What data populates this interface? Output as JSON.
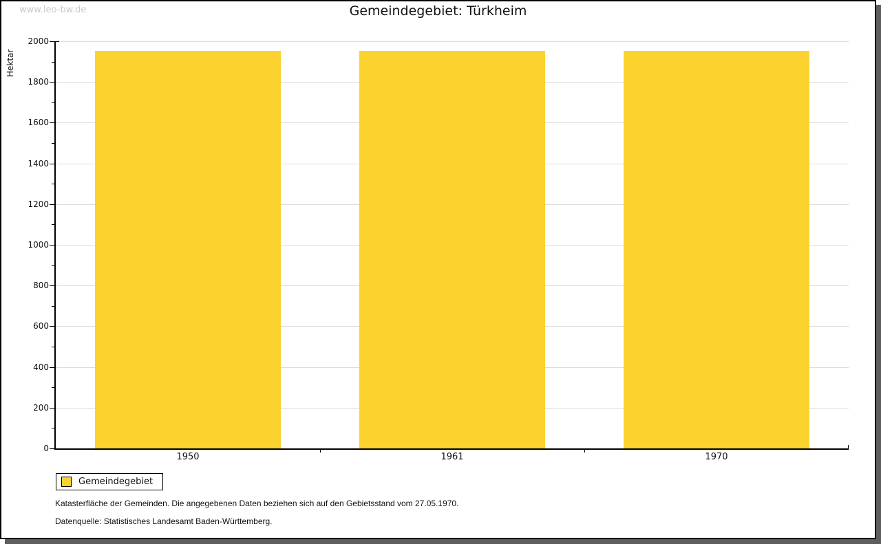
{
  "watermark": "www.leo-bw.de",
  "chart_data": {
    "type": "bar",
    "title": "Gemeindegebiet: Türkheim",
    "categories": [
      "1950",
      "1961",
      "1970"
    ],
    "series": [
      {
        "name": "Gemeindegebiet",
        "values": [
          1953,
          1953,
          1953
        ],
        "color": "#fcd32e"
      }
    ],
    "xlabel": "",
    "ylabel": "Hektar",
    "ylim": [
      0,
      2000
    ],
    "ytick_step": 200,
    "yminor_step": 100,
    "grid": "horizontal major gridlines",
    "grid_color": "#dcdcdc",
    "legend_position": "bottom-left"
  },
  "legend": {
    "label": "Gemeindegebiet",
    "swatch_color": "#fcd32e"
  },
  "footer": {
    "lines": [
      "Katasterfläche der Gemeinden. Die angegebenen Daten beziehen sich auf den Gebietsstand vom 27.05.1970.",
      "Datenquelle: Statistisches Landesamt Baden-Württemberg."
    ]
  }
}
